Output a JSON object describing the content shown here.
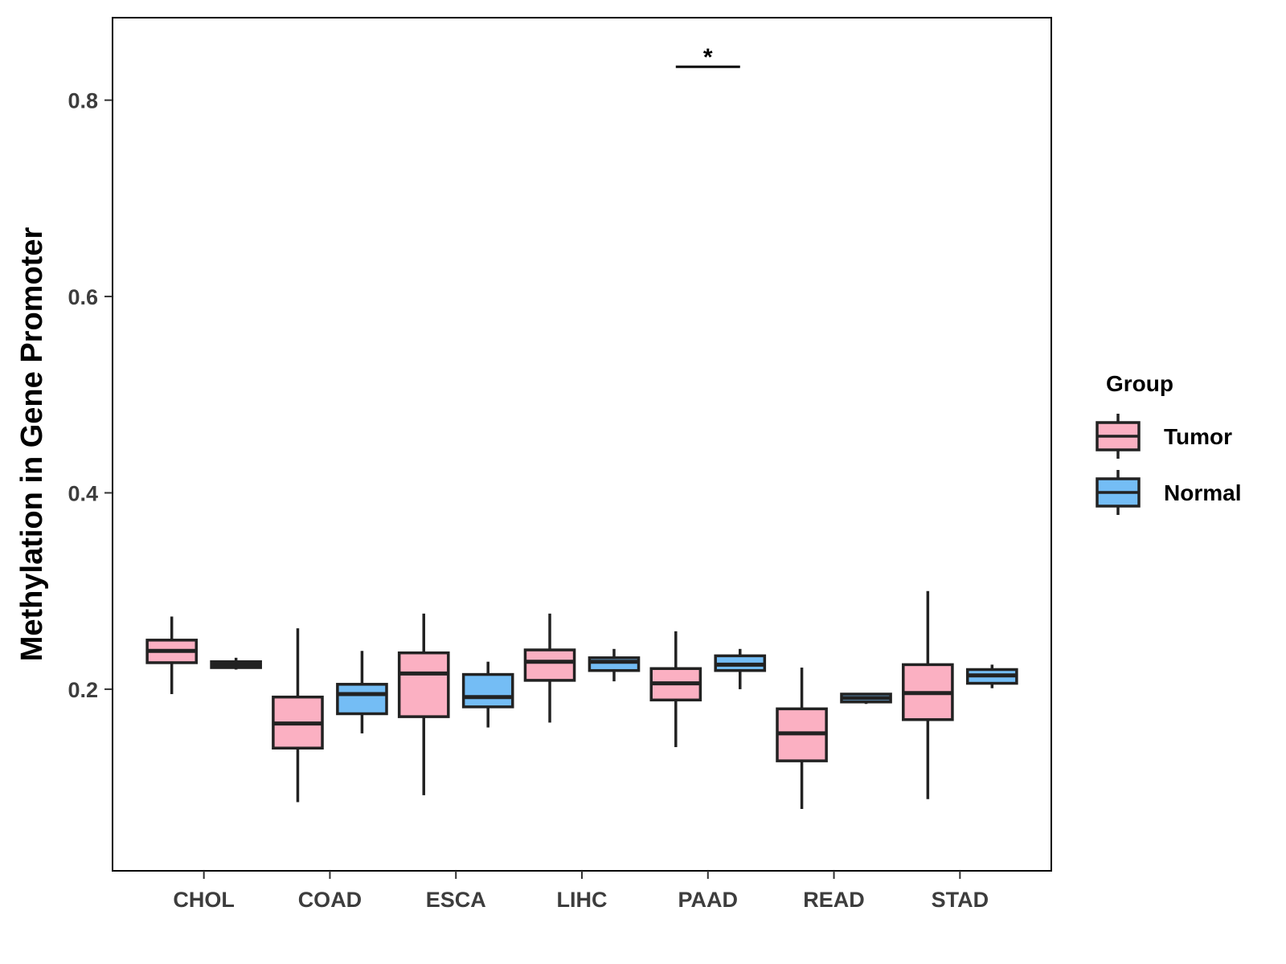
{
  "chart_data": {
    "type": "boxplot",
    "title": "",
    "xlabel": "",
    "ylabel": "Methylation in Gene Promoter",
    "ylim": [
      0.015,
      0.884
    ],
    "y_ticks": [
      0.2,
      0.4,
      0.6,
      0.8
    ],
    "y_tick_labels": [
      "0.2",
      "0.4",
      "0.6",
      "0.8"
    ],
    "categories": [
      "CHOL",
      "COAD",
      "ESCA",
      "LIHC",
      "PAAD",
      "READ",
      "STAD"
    ],
    "grid": false,
    "legend": {
      "title": "Group",
      "position": "right",
      "entries": [
        {
          "name": "Tumor",
          "color": "#fbb0c2"
        },
        {
          "name": "Normal",
          "color": "#74bdf5"
        }
      ]
    },
    "series": [
      {
        "name": "Tumor",
        "color": "#fbb0c2",
        "boxes": [
          {
            "whisker_low": 0.195,
            "q1": 0.227,
            "median": 0.239,
            "q3": 0.25,
            "whisker_high": 0.274
          },
          {
            "whisker_low": 0.085,
            "q1": 0.14,
            "median": 0.165,
            "q3": 0.192,
            "whisker_high": 0.262
          },
          {
            "whisker_low": 0.092,
            "q1": 0.172,
            "median": 0.216,
            "q3": 0.237,
            "whisker_high": 0.277
          },
          {
            "whisker_low": 0.166,
            "q1": 0.209,
            "median": 0.228,
            "q3": 0.24,
            "whisker_high": 0.277
          },
          {
            "whisker_low": 0.141,
            "q1": 0.189,
            "median": 0.206,
            "q3": 0.221,
            "whisker_high": 0.259
          },
          {
            "whisker_low": 0.078,
            "q1": 0.127,
            "median": 0.155,
            "q3": 0.18,
            "whisker_high": 0.222
          },
          {
            "whisker_low": 0.088,
            "q1": 0.169,
            "median": 0.196,
            "q3": 0.225,
            "whisker_high": 0.3
          }
        ]
      },
      {
        "name": "Normal",
        "color": "#74bdf5",
        "boxes": [
          {
            "whisker_low": 0.22,
            "q1": 0.222,
            "median": 0.225,
            "q3": 0.228,
            "whisker_high": 0.232
          },
          {
            "whisker_low": 0.155,
            "q1": 0.175,
            "median": 0.195,
            "q3": 0.205,
            "whisker_high": 0.239
          },
          {
            "whisker_low": 0.161,
            "q1": 0.182,
            "median": 0.192,
            "q3": 0.215,
            "whisker_high": 0.228
          },
          {
            "whisker_low": 0.208,
            "q1": 0.219,
            "median": 0.228,
            "q3": 0.232,
            "whisker_high": 0.241
          },
          {
            "whisker_low": 0.2,
            "q1": 0.219,
            "median": 0.225,
            "q3": 0.234,
            "whisker_high": 0.241
          },
          {
            "whisker_low": 0.185,
            "q1": 0.187,
            "median": 0.191,
            "q3": 0.195,
            "whisker_high": 0.196
          },
          {
            "whisker_low": 0.201,
            "q1": 0.206,
            "median": 0.214,
            "q3": 0.22,
            "whisker_high": 0.225
          }
        ]
      }
    ],
    "annotations": [
      {
        "category": "PAAD",
        "label": "*",
        "bar_y": 0.834
      }
    ]
  }
}
